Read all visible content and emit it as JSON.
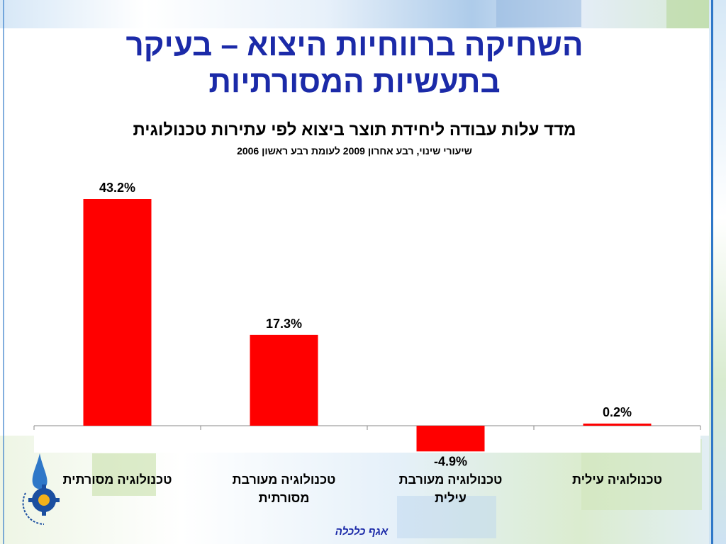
{
  "slide": {
    "title_line1": "השחיקה ברווחיות היצוא – בעיקר",
    "title_line2": "בתעשיות המסורתיות",
    "footer": "אגף כלכלה"
  },
  "chart_data": {
    "type": "bar",
    "title": "מדד עלות עבודה ליחידת תוצר ביצוא לפי עתירות טכנולוגית",
    "subtitle": "שיעורי שינוי, רבע אחרון 2009 לעומת רבע ראשון 2006",
    "categories": [
      [
        "טכנולוגיה מסורתית"
      ],
      [
        "טכנולוגיה מעורבת",
        "מסורתית"
      ],
      [
        "טכנולוגיה מעורבת",
        "עילית"
      ],
      [
        "טכנולוגיה עילית"
      ]
    ],
    "values": [
      43.2,
      17.3,
      -4.9,
      0.2
    ],
    "value_labels": [
      "43.2%",
      "17.3%",
      "-4.9%",
      "0.2%"
    ],
    "ylim": [
      -6,
      46
    ],
    "bar_color": "#ff0000",
    "grid": false
  }
}
